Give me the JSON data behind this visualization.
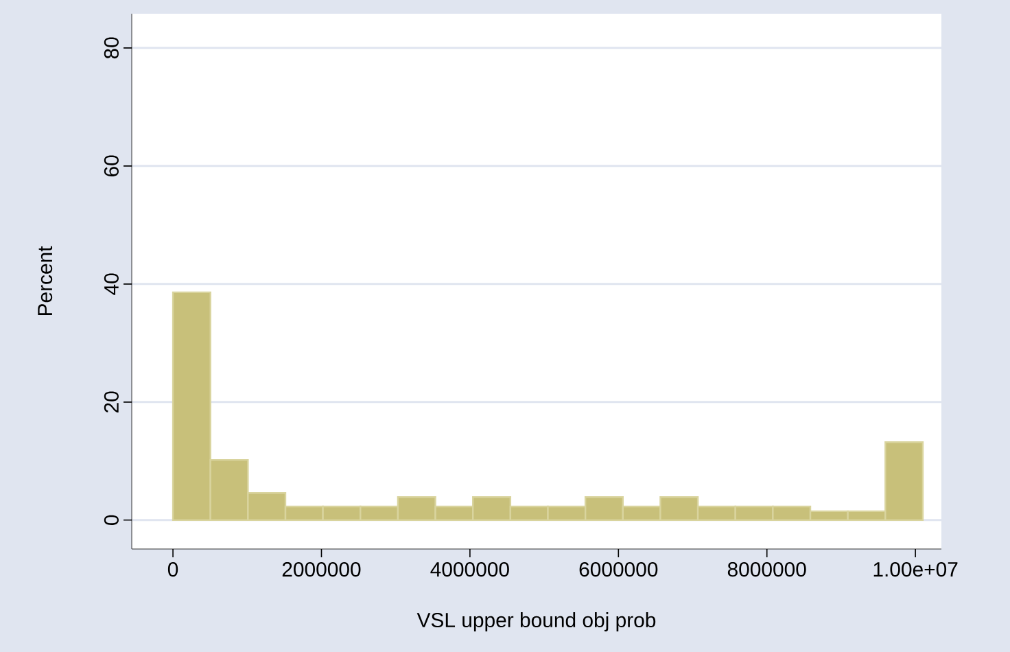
{
  "chart_data": {
    "type": "histogram",
    "xlabel": "VSL upper bound obj prob",
    "ylabel": "Percent",
    "color": "#c8c07a",
    "bins": [
      0,
      505000,
      1010000,
      1515000,
      2020000,
      2525000,
      3030000,
      3535000,
      4040000,
      4545000,
      5050000,
      5555000,
      6060000,
      6565000,
      7070000,
      7575000,
      8080000,
      8585000,
      9090000,
      9595000,
      10100000
    ],
    "values": [
      38.6,
      10.2,
      4.6,
      2.3,
      2.3,
      2.3,
      3.9,
      2.3,
      3.9,
      2.3,
      2.3,
      3.9,
      2.3,
      3.9,
      2.3,
      2.3,
      2.3,
      1.5,
      1.5,
      13.2
    ],
    "xlim": [
      -555000,
      10350000
    ],
    "ylim": [
      -4.9,
      85.8
    ],
    "xticks": [
      0,
      2000000,
      4000000,
      6000000,
      8000000,
      {
        "value": 10000000,
        "label": "1.00e+07"
      }
    ],
    "yticks": [
      0,
      20,
      40,
      60,
      80
    ],
    "grid": "y"
  }
}
